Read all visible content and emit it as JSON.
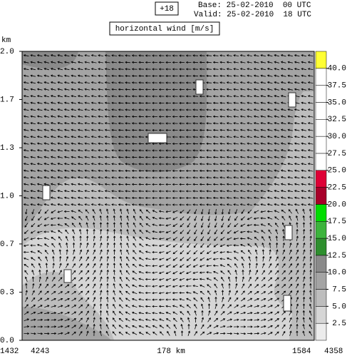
{
  "header": {
    "forecast_step": "+18",
    "base": "Base: 25-02-2010  00 UTC",
    "valid": "Valid: 25-02-2010  18 UTC"
  },
  "chart_data": {
    "type": "cross-section",
    "title": "horizontal wind [m/s]",
    "y_unit": "km",
    "ylim": [
      0,
      2
    ],
    "yticks": [
      {
        "value": 0,
        "label": "0.0"
      },
      {
        "value": 0.333,
        "label": "0.3"
      },
      {
        "value": 0.667,
        "label": "0.7"
      },
      {
        "value": 1,
        "label": "1.0"
      },
      {
        "value": 1.333,
        "label": "1.3"
      },
      {
        "value": 1.667,
        "label": "1.7"
      },
      {
        "value": 2,
        "label": "2.0"
      }
    ],
    "x_labels": [
      "1432",
      "4243",
      "178 km",
      "1584",
      "4358"
    ],
    "colorbar": {
      "levels": [
        0,
        2.5,
        5,
        7.5,
        10,
        12.5,
        15,
        17.5,
        20,
        22.5,
        25,
        27.5,
        30,
        32.5,
        35,
        37.5,
        40,
        42.5
      ],
      "colors": [
        "#ececec",
        "#d6d6d6",
        "#bdbdbd",
        "#a4a4a4",
        "#8a8a8a",
        "#2e8f2e",
        "#3cb43c",
        "#00dd00",
        "#a8002a",
        "#de0036",
        "#ffffff",
        "#ffffff",
        "#ffffff",
        "#ffffff",
        "#ffffff",
        "#ffffff",
        "#ffff33"
      ],
      "ticks": [
        2.5,
        {
          "value": 5,
          "label": "5.0"
        },
        7.5,
        {
          "value": 10,
          "label": "10.0"
        },
        12.5,
        {
          "value": 15,
          "label": "15.0"
        },
        17.5,
        {
          "value": 20,
          "label": "20.0"
        },
        22.5,
        {
          "value": 25,
          "label": "25.0"
        },
        27.5,
        {
          "value": 30,
          "label": "30.0"
        },
        32.5,
        {
          "value": 35,
          "label": "35.0"
        },
        37.5,
        {
          "value": 40,
          "label": "40.0"
        }
      ]
    }
  }
}
